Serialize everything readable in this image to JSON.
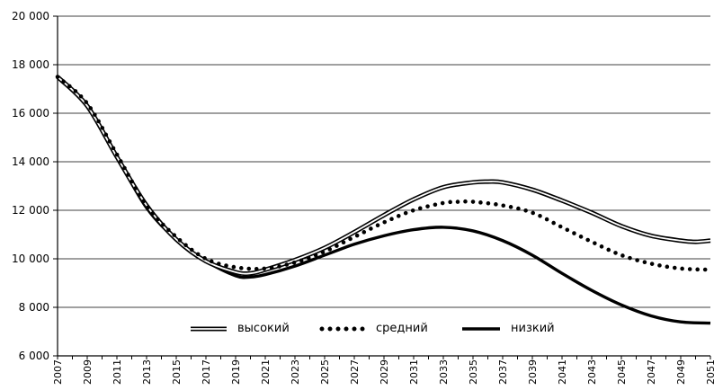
{
  "chart_data": {
    "type": "line",
    "xlim": [
      2007,
      2051
    ],
    "ylim": [
      6000,
      20000
    ],
    "y_ticks": [
      6000,
      8000,
      10000,
      12000,
      14000,
      16000,
      18000,
      20000
    ],
    "y_tick_labels": [
      "6 000",
      "8 000",
      "10 000",
      "12 000",
      "14 000",
      "16 000",
      "18 000",
      "20 000"
    ],
    "x_tick_labels": [
      "2007",
      "2009",
      "2011",
      "2013",
      "2015",
      "2017",
      "2019",
      "2021",
      "2023",
      "2025",
      "2027",
      "2029",
      "2031",
      "2033",
      "2035",
      "2037",
      "2039",
      "2041",
      "2043",
      "2045",
      "2047",
      "2049",
      "2051"
    ],
    "grid": "horizontal",
    "legend_position": "bottom-center",
    "series": [
      {
        "name": "высокий",
        "style": "double",
        "color": "#000000",
        "x": [
          2007,
          2009,
          2011,
          2013,
          2015,
          2017,
          2019,
          2020,
          2021,
          2023,
          2025,
          2027,
          2029,
          2031,
          2033,
          2035,
          2036,
          2037,
          2039,
          2041,
          2043,
          2045,
          2047,
          2049,
          2050,
          2051
        ],
        "values": [
          17500,
          16300,
          14200,
          12200,
          10800,
          9900,
          9450,
          9400,
          9550,
          9950,
          10450,
          11100,
          11800,
          12450,
          12950,
          13150,
          13180,
          13150,
          12850,
          12400,
          11900,
          11350,
          10950,
          10750,
          10700,
          10750
        ]
      },
      {
        "name": "средний",
        "style": "dotted",
        "color": "#000000",
        "x": [
          2007,
          2009,
          2011,
          2013,
          2015,
          2017,
          2019,
          2021,
          2023,
          2025,
          2027,
          2029,
          2031,
          2033,
          2034,
          2035,
          2037,
          2039,
          2041,
          2043,
          2045,
          2047,
          2049,
          2051
        ],
        "values": [
          17500,
          16400,
          14300,
          12200,
          10900,
          10000,
          9650,
          9600,
          9850,
          10300,
          10900,
          11500,
          12000,
          12300,
          12350,
          12350,
          12200,
          11900,
          11300,
          10700,
          10150,
          9800,
          9600,
          9550
        ]
      },
      {
        "name": "низкий",
        "style": "bold",
        "color": "#000000",
        "x": [
          2007,
          2009,
          2011,
          2013,
          2015,
          2017,
          2019,
          2020,
          2021,
          2023,
          2025,
          2027,
          2029,
          2031,
          2033,
          2035,
          2037,
          2039,
          2041,
          2043,
          2045,
          2047,
          2049,
          2051
        ],
        "values": [
          17500,
          16300,
          14200,
          12100,
          10800,
          9900,
          9300,
          9250,
          9350,
          9700,
          10150,
          10600,
          10950,
          11200,
          11300,
          11150,
          10750,
          10150,
          9400,
          8700,
          8100,
          7650,
          7400,
          7350
        ]
      }
    ]
  }
}
